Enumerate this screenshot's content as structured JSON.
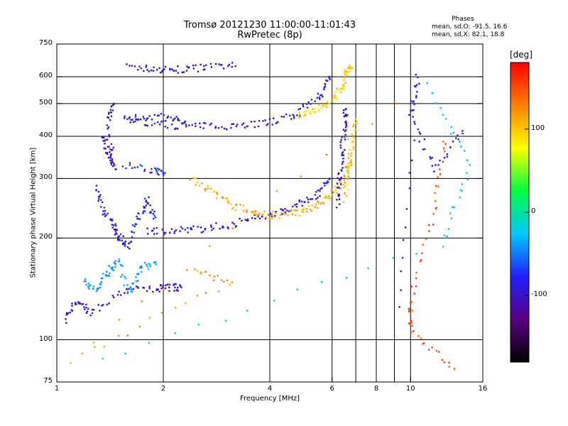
{
  "chart_data": {
    "type": "scatter",
    "title": "Tromsø 20121230 11:00:00-11:01:43",
    "subtitle": "RwPretec (8p)",
    "xlabel": "Frequency [MHz]",
    "ylabel": "Stationary phase Virtual Height [km]",
    "xscale": "log",
    "yscale": "log",
    "xlim": [
      1,
      16
    ],
    "ylim": [
      75,
      750
    ],
    "grid": true,
    "xticks": [
      1,
      2,
      4,
      6,
      8,
      10,
      16
    ],
    "xtick_labels": [
      "1",
      "2",
      "4",
      "6",
      "8",
      "10",
      "16"
    ],
    "xgrid": [
      2,
      4,
      6,
      7,
      8,
      9,
      10
    ],
    "yticks": [
      75,
      100,
      200,
      300,
      400,
      500,
      600,
      750
    ],
    "ytick_labels": [
      "75",
      "100",
      "200",
      "300",
      "400",
      "500",
      "600",
      "750"
    ],
    "ygrid": [
      100,
      200,
      300,
      400,
      500,
      600
    ],
    "stats": {
      "title": "Phases",
      "o_line": "mean, sd,O: -91.5, 16.6",
      "x_line": "mean, sd,X:  82.1, 18.8"
    },
    "colorbar": {
      "unit": "[deg]",
      "range": [
        -180,
        180
      ],
      "ticks": [
        100,
        0,
        -100
      ],
      "tick_labels": [
        "100",
        "0",
        "-100"
      ],
      "colormap": [
        "#000000",
        "#5a0080",
        "#2020ff",
        "#00c8ff",
        "#00ff40",
        "#ffff00",
        "#ff8000",
        "#ff0000"
      ]
    },
    "series": [
      {
        "phase": -95,
        "points": [
          [
            1.6,
            640
          ],
          [
            1.9,
            632
          ],
          [
            2.2,
            628
          ],
          [
            2.6,
            640
          ],
          [
            3.2,
            645
          ]
        ]
      },
      {
        "phase": -90,
        "points": [
          [
            1.55,
            450
          ],
          [
            1.8,
            440
          ],
          [
            2.2,
            430
          ],
          [
            2.7,
            428
          ],
          [
            3.3,
            432
          ],
          [
            4.0,
            440
          ],
          [
            4.8,
            465
          ],
          [
            5.5,
            520
          ],
          [
            5.9,
            600
          ]
        ]
      },
      {
        "phase": -85,
        "points": [
          [
            1.6,
            460
          ],
          [
            2.0,
            455
          ],
          [
            2.3,
            440
          ]
        ]
      },
      {
        "phase": -70,
        "points": [
          [
            1.55,
            330
          ],
          [
            1.9,
            315
          ],
          [
            2.0,
            312
          ]
        ]
      },
      {
        "phase": -90,
        "points": [
          [
            1.8,
            210
          ],
          [
            2.1,
            210
          ],
          [
            2.5,
            212
          ],
          [
            3.0,
            218
          ],
          [
            3.6,
            228
          ],
          [
            4.2,
            238
          ],
          [
            4.8,
            250
          ],
          [
            5.4,
            268
          ],
          [
            5.9,
            300
          ]
        ]
      },
      {
        "phase": 110,
        "points": [
          [
            2.4,
            300
          ],
          [
            2.8,
            270
          ],
          [
            3.2,
            248
          ],
          [
            3.7,
            236
          ],
          [
            4.2,
            233
          ],
          [
            4.8,
            238
          ],
          [
            5.4,
            250
          ],
          [
            6.0,
            270
          ],
          [
            6.5,
            300
          ],
          [
            6.8,
            340
          ]
        ]
      },
      {
        "phase": 95,
        "points": [
          [
            4.8,
            460
          ],
          [
            5.4,
            480
          ],
          [
            6.0,
            510
          ],
          [
            6.4,
            560
          ],
          [
            6.6,
            620
          ],
          [
            6.8,
            640
          ]
        ]
      },
      {
        "phase": -100,
        "points": [
          [
            6.2,
            250
          ],
          [
            6.3,
            300
          ],
          [
            6.4,
            360
          ],
          [
            6.5,
            430
          ],
          [
            6.55,
            480
          ]
        ]
      },
      {
        "phase": 100,
        "points": [
          [
            6.5,
            260
          ],
          [
            6.7,
            320
          ],
          [
            6.85,
            380
          ],
          [
            7.0,
            450
          ]
        ]
      },
      {
        "phase": -80,
        "points": [
          [
            1.3,
            280
          ],
          [
            1.35,
            240
          ],
          [
            1.45,
            220
          ],
          [
            1.5,
            200
          ],
          [
            1.6,
            190
          ],
          [
            1.7,
            230
          ],
          [
            1.8,
            260
          ],
          [
            1.9,
            230
          ]
        ]
      },
      {
        "phase": -40,
        "points": [
          [
            1.2,
            150
          ],
          [
            1.3,
            140
          ],
          [
            1.4,
            160
          ],
          [
            1.5,
            170
          ],
          [
            1.6,
            135
          ],
          [
            1.7,
            160
          ],
          [
            1.9,
            170
          ]
        ]
      },
      {
        "phase": -95,
        "points": [
          [
            1.05,
            115
          ],
          [
            1.15,
            130
          ],
          [
            1.25,
            120
          ],
          [
            1.55,
            140
          ],
          [
            1.9,
            142
          ],
          [
            2.1,
            143
          ],
          [
            2.25,
            143
          ]
        ]
      },
      {
        "phase": -100,
        "points": [
          [
            1.35,
            400
          ],
          [
            1.4,
            360
          ],
          [
            1.45,
            320
          ],
          [
            1.4,
            450
          ],
          [
            1.45,
            500
          ]
        ]
      },
      {
        "phase": 150,
        "points": [
          [
            12.5,
            395
          ],
          [
            11.6,
            232
          ],
          [
            10.0,
            130
          ],
          [
            10.0,
            107
          ],
          [
            13.3,
            82
          ]
        ]
      },
      {
        "phase": -90,
        "points": [
          [
            14.0,
            420
          ],
          [
            11.8,
            320
          ],
          [
            10.0,
            460
          ],
          [
            10.5,
            610
          ],
          [
            9.3,
            125
          ]
        ]
      },
      {
        "phase": -20,
        "points": [
          [
            11.2,
            570
          ],
          [
            14.8,
            330
          ],
          [
            12.2,
            192
          ],
          [
            1.35,
            88
          ]
        ]
      },
      {
        "phase": 120,
        "points": [
          [
            2.45,
            160
          ],
          [
            3.1,
            148
          ],
          [
            1.1,
            87
          ],
          [
            9.0,
            505
          ]
        ]
      }
    ]
  }
}
